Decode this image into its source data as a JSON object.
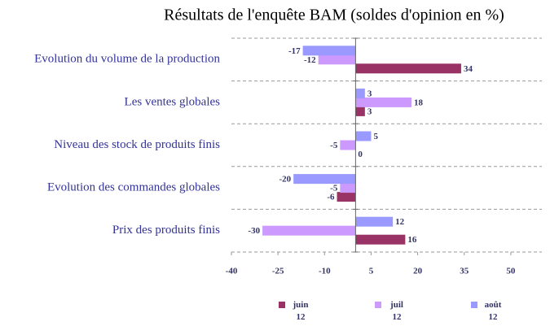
{
  "chart_data": {
    "type": "bar",
    "orientation": "horizontal",
    "title": "Résultats de l'enquête BAM  (soldes d'opinion en %)",
    "categories": [
      "Evolution du volume de la production",
      "Les ventes globales",
      "Niveau des stock de produits finis",
      "Evolution des commandes globales",
      "Prix des produits finis"
    ],
    "series": [
      {
        "name": "juin 12",
        "color": "#993366",
        "values": [
          34,
          3,
          0,
          -6,
          16
        ]
      },
      {
        "name": "juil 12",
        "color": "#cc99ff",
        "values": [
          -12,
          18,
          -5,
          -5,
          -30
        ]
      },
      {
        "name": "août 12",
        "color": "#9999ff",
        "values": [
          -17,
          3,
          5,
          -20,
          12
        ]
      }
    ],
    "xlim": [
      -40,
      60
    ],
    "xticks": [
      -40,
      -25,
      -10,
      5,
      20,
      35,
      50
    ],
    "grid": true,
    "legend": "bottom"
  }
}
